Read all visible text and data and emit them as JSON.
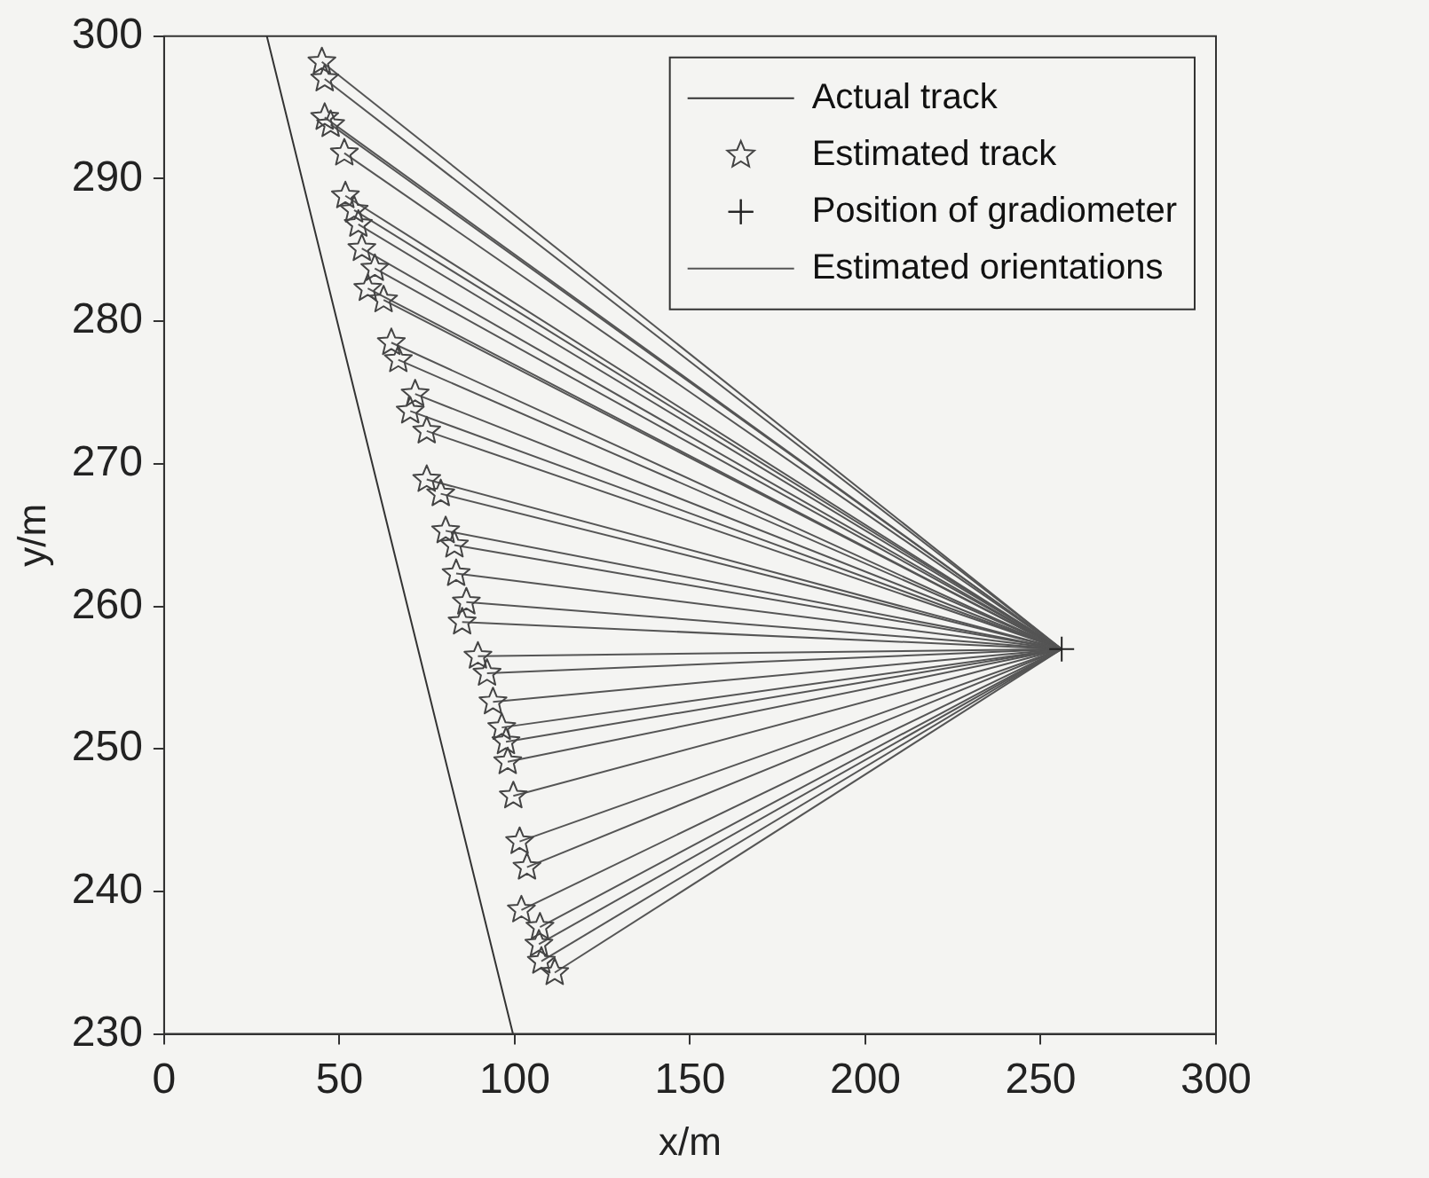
{
  "chart_data": {
    "type": "line",
    "xlabel": "x/m",
    "ylabel": "y/m",
    "xlim": [
      0,
      300
    ],
    "xticks": [
      0,
      50,
      100,
      150,
      200,
      250,
      300
    ],
    "ylim": [
      230,
      300
    ],
    "yticks": [
      230,
      240,
      250,
      260,
      270,
      280,
      290,
      300
    ],
    "grid": false,
    "legend": "top right",
    "series": [
      {
        "name": "Actual track",
        "type": "line",
        "color": "#333333",
        "marker": "none",
        "line_style": "solid",
        "x": [
          29.3,
          66.7,
          99.5
        ],
        "values": [
          300,
          262.7,
          230
        ]
      },
      {
        "name": "Estimated track",
        "type": "scatter",
        "color": "#444444",
        "marker": "star",
        "x": [
          45,
          45.8,
          45.8,
          47.5,
          51.4,
          51.7,
          54.2,
          55.4,
          56.4,
          60.1,
          58.1,
          62.6,
          64.8,
          66.8,
          71.6,
          70.2,
          74.9,
          74.9,
          78.9,
          80.3,
          82.8,
          83.3,
          86.2,
          85,
          89.5,
          92.1,
          93.8,
          96.3,
          97.5,
          98,
          99.6,
          101.4,
          103.5,
          101.9,
          107.2,
          106.9,
          107.6,
          111.4
        ],
        "values": [
          298.2,
          297,
          294.3,
          293.8,
          291.8,
          288.8,
          287.8,
          286.8,
          285.1,
          283.7,
          282.3,
          281.5,
          278.5,
          277.3,
          274.9,
          273.7,
          272.3,
          268.9,
          267.9,
          265.3,
          264.3,
          262.3,
          260.3,
          258.9,
          256.5,
          255.3,
          253.3,
          251.5,
          250.5,
          249.1,
          246.7,
          243.5,
          241.7,
          238.7,
          237.5,
          236.3,
          235.1,
          234.3
        ]
      },
      {
        "name": "Position of gradiometer",
        "type": "scatter",
        "color": "#222222",
        "marker": "cross",
        "x": [
          256
        ],
        "values": [
          257
        ]
      },
      {
        "name": "Estimated orientations",
        "type": "line",
        "color": "#555555",
        "marker": "none",
        "x": [
          45,
          256
        ],
        "values": [
          298.2,
          257
        ]
      },
      {
        "type": "line",
        "color": "#555555",
        "marker": "none",
        "x": [
          45.8,
          256
        ],
        "values": [
          297,
          257
        ]
      },
      {
        "type": "line",
        "color": "#555555",
        "marker": "none",
        "x": [
          45.8,
          256
        ],
        "values": [
          294.3,
          257
        ]
      },
      {
        "type": "line",
        "color": "#555555",
        "marker": "none",
        "x": [
          47.5,
          256
        ],
        "values": [
          293.8,
          257
        ]
      },
      {
        "type": "line",
        "color": "#555555",
        "marker": "none",
        "x": [
          51.4,
          256
        ],
        "values": [
          291.8,
          257
        ]
      },
      {
        "type": "line",
        "color": "#555555",
        "marker": "none",
        "x": [
          51.7,
          256
        ],
        "values": [
          288.8,
          257
        ]
      },
      {
        "type": "line",
        "color": "#555555",
        "marker": "none",
        "x": [
          54.2,
          256
        ],
        "values": [
          287.8,
          257
        ]
      },
      {
        "type": "line",
        "color": "#555555",
        "marker": "none",
        "x": [
          55.4,
          256
        ],
        "values": [
          286.8,
          257
        ]
      },
      {
        "type": "line",
        "color": "#555555",
        "marker": "none",
        "x": [
          56.4,
          256
        ],
        "values": [
          285.1,
          257
        ]
      },
      {
        "type": "line",
        "color": "#555555",
        "marker": "none",
        "x": [
          60.1,
          256
        ],
        "values": [
          283.7,
          257
        ]
      },
      {
        "type": "line",
        "color": "#555555",
        "marker": "none",
        "x": [
          58.1,
          256
        ],
        "values": [
          282.3,
          257
        ]
      },
      {
        "type": "line",
        "color": "#555555",
        "marker": "none",
        "x": [
          62.6,
          256
        ],
        "values": [
          281.5,
          257
        ]
      },
      {
        "type": "line",
        "color": "#555555",
        "marker": "none",
        "x": [
          64.8,
          256
        ],
        "values": [
          278.5,
          257
        ]
      },
      {
        "type": "line",
        "color": "#555555",
        "marker": "none",
        "x": [
          66.8,
          256
        ],
        "values": [
          277.3,
          257
        ]
      },
      {
        "type": "line",
        "color": "#555555",
        "marker": "none",
        "x": [
          71.6,
          256
        ],
        "values": [
          274.9,
          257
        ]
      },
      {
        "type": "line",
        "color": "#555555",
        "marker": "none",
        "x": [
          70.2,
          256
        ],
        "values": [
          273.7,
          257
        ]
      },
      {
        "type": "line",
        "color": "#555555",
        "marker": "none",
        "x": [
          74.9,
          256
        ],
        "values": [
          272.3,
          257
        ]
      },
      {
        "type": "line",
        "color": "#555555",
        "marker": "none",
        "x": [
          74.9,
          256
        ],
        "values": [
          268.9,
          257
        ]
      },
      {
        "type": "line",
        "color": "#555555",
        "marker": "none",
        "x": [
          78.9,
          256
        ],
        "values": [
          267.9,
          257
        ]
      },
      {
        "type": "line",
        "color": "#555555",
        "marker": "none",
        "x": [
          80.3,
          256
        ],
        "values": [
          265.3,
          257
        ]
      },
      {
        "type": "line",
        "color": "#555555",
        "marker": "none",
        "x": [
          82.8,
          256
        ],
        "values": [
          264.3,
          257
        ]
      },
      {
        "type": "line",
        "color": "#555555",
        "marker": "none",
        "x": [
          83.3,
          256
        ],
        "values": [
          262.3,
          257
        ]
      },
      {
        "type": "line",
        "color": "#555555",
        "marker": "none",
        "x": [
          86.2,
          256
        ],
        "values": [
          260.3,
          257
        ]
      },
      {
        "type": "line",
        "color": "#555555",
        "marker": "none",
        "x": [
          85,
          256
        ],
        "values": [
          258.9,
          257
        ]
      },
      {
        "type": "line",
        "color": "#555555",
        "marker": "none",
        "x": [
          89.5,
          256
        ],
        "values": [
          256.5,
          257
        ]
      },
      {
        "type": "line",
        "color": "#555555",
        "marker": "none",
        "x": [
          92.1,
          256
        ],
        "values": [
          255.3,
          257
        ]
      },
      {
        "type": "line",
        "color": "#555555",
        "marker": "none",
        "x": [
          93.8,
          256
        ],
        "values": [
          253.3,
          257
        ]
      },
      {
        "type": "line",
        "color": "#555555",
        "marker": "none",
        "x": [
          96.3,
          256
        ],
        "values": [
          251.5,
          257
        ]
      },
      {
        "type": "line",
        "color": "#555555",
        "marker": "none",
        "x": [
          97.5,
          256
        ],
        "values": [
          250.5,
          257
        ]
      },
      {
        "type": "line",
        "color": "#555555",
        "marker": "none",
        "x": [
          98,
          256
        ],
        "values": [
          249.1,
          257
        ]
      },
      {
        "type": "line",
        "color": "#555555",
        "marker": "none",
        "x": [
          99.6,
          256
        ],
        "values": [
          246.7,
          257
        ]
      },
      {
        "type": "line",
        "color": "#555555",
        "marker": "none",
        "x": [
          101.4,
          256
        ],
        "values": [
          243.5,
          257
        ]
      },
      {
        "type": "line",
        "color": "#555555",
        "marker": "none",
        "x": [
          103.5,
          256
        ],
        "values": [
          241.7,
          257
        ]
      },
      {
        "type": "line",
        "color": "#555555",
        "marker": "none",
        "x": [
          101.9,
          256
        ],
        "values": [
          238.7,
          257
        ]
      },
      {
        "type": "line",
        "color": "#555555",
        "marker": "none",
        "x": [
          107.2,
          256
        ],
        "values": [
          237.5,
          257
        ]
      },
      {
        "type": "line",
        "color": "#555555",
        "marker": "none",
        "x": [
          106.9,
          256
        ],
        "values": [
          236.3,
          257
        ]
      },
      {
        "type": "line",
        "color": "#555555",
        "marker": "none",
        "x": [
          107.6,
          256
        ],
        "values": [
          235.1,
          257
        ]
      },
      {
        "type": "line",
        "color": "#555555",
        "marker": "none",
        "x": [
          111.4,
          256
        ],
        "values": [
          234.3,
          257
        ]
      }
    ]
  }
}
